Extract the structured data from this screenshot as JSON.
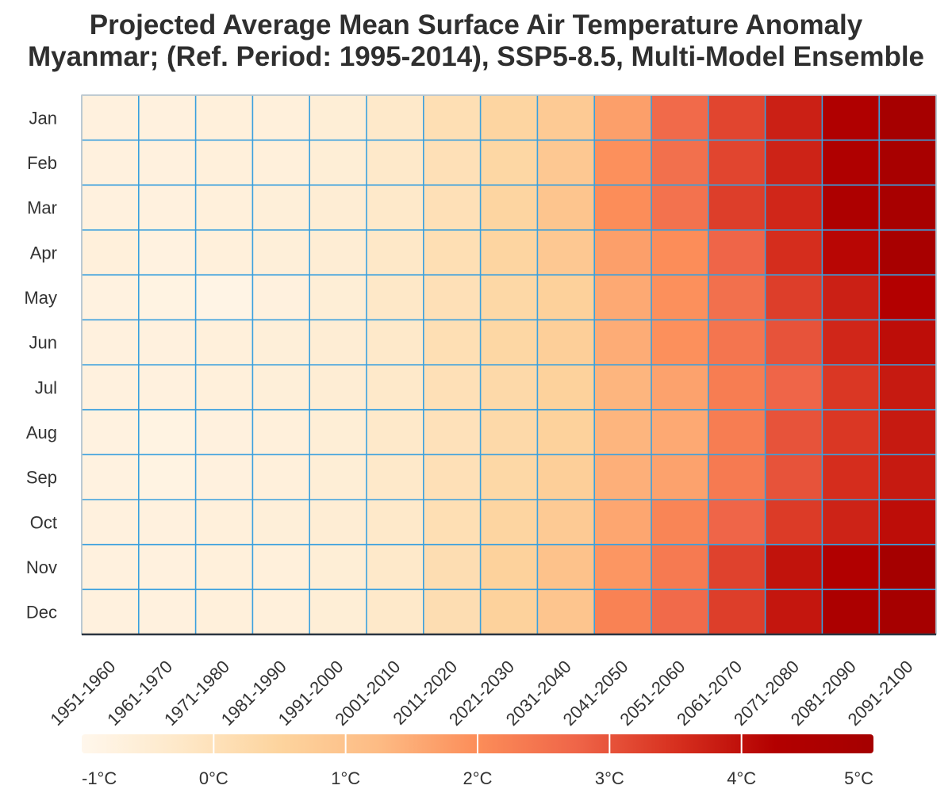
{
  "chart_data": {
    "type": "heatmap",
    "title": "Projected Average Mean Surface Air Temperature Anomaly",
    "subtitle": "Myanmar; (Ref. Period: 1995-2014), SSP5-8.5, Multi-Model Ensemble",
    "rows": [
      "Jan",
      "Feb",
      "Mar",
      "Apr",
      "May",
      "Jun",
      "Jul",
      "Aug",
      "Sep",
      "Oct",
      "Nov",
      "Dec"
    ],
    "columns": [
      "1951-1960",
      "1961-1970",
      "1971-1980",
      "1981-1990",
      "1991-2000",
      "2001-2010",
      "2011-2020",
      "2021-2030",
      "2031-2040",
      "2041-2050",
      "2051-2060",
      "2061-2070",
      "2071-2080",
      "2081-2090",
      "2091-2100"
    ],
    "values": [
      [
        -0.7,
        -0.7,
        -0.65,
        -0.65,
        -0.55,
        -0.3,
        0.1,
        0.45,
        0.8,
        1.7,
        2.65,
        3.2,
        3.75,
        4.4,
        4.95
      ],
      [
        -0.7,
        -0.7,
        -0.65,
        -0.65,
        -0.55,
        -0.3,
        0.05,
        0.4,
        0.85,
        1.95,
        2.55,
        3.2,
        3.7,
        4.45,
        4.85
      ],
      [
        -0.7,
        -0.7,
        -0.65,
        -0.6,
        -0.5,
        -0.3,
        0.05,
        0.45,
        0.95,
        2.0,
        2.5,
        3.3,
        3.65,
        4.55,
        4.85
      ],
      [
        -0.65,
        -0.75,
        -0.65,
        -0.6,
        -0.5,
        -0.25,
        0.1,
        0.45,
        0.85,
        1.7,
        2.0,
        2.75,
        3.55,
        4.15,
        4.85
      ],
      [
        -0.75,
        -0.8,
        -0.85,
        -0.7,
        -0.55,
        -0.25,
        0.05,
        0.35,
        0.6,
        1.55,
        1.95,
        2.55,
        3.3,
        3.75,
        4.25
      ],
      [
        -0.7,
        -0.7,
        -0.65,
        -0.6,
        -0.5,
        -0.3,
        0.1,
        0.4,
        0.65,
        1.5,
        1.95,
        2.45,
        3.0,
        3.65,
        4.05
      ],
      [
        -0.7,
        -0.7,
        -0.65,
        -0.6,
        -0.5,
        -0.3,
        0.05,
        0.3,
        0.55,
        1.35,
        1.65,
        2.3,
        2.75,
        3.4,
        3.85
      ],
      [
        -0.75,
        -0.8,
        -0.7,
        -0.65,
        -0.55,
        -0.3,
        0.0,
        0.3,
        0.55,
        1.35,
        1.55,
        2.3,
        3.0,
        3.4,
        3.85
      ],
      [
        -0.75,
        -0.8,
        -0.7,
        -0.65,
        -0.55,
        -0.3,
        0.05,
        0.35,
        0.65,
        1.45,
        1.65,
        2.35,
        3.0,
        3.55,
        3.85
      ],
      [
        -0.7,
        -0.7,
        -0.65,
        -0.6,
        -0.5,
        -0.3,
        0.1,
        0.45,
        0.8,
        1.6,
        2.15,
        2.75,
        3.35,
        3.7,
        4.05
      ],
      [
        -0.7,
        -0.7,
        -0.65,
        -0.65,
        -0.55,
        -0.3,
        0.15,
        0.55,
        1.05,
        1.85,
        2.35,
        3.25,
        3.95,
        4.35,
        5.05
      ],
      [
        -0.7,
        -0.7,
        -0.65,
        -0.65,
        -0.55,
        -0.3,
        0.15,
        0.55,
        0.95,
        2.2,
        2.65,
        3.3,
        3.9,
        4.6,
        4.95
      ]
    ],
    "colorbar": {
      "min": -1,
      "max": 5,
      "ticks": [
        -1,
        0,
        1,
        2,
        3,
        4,
        5
      ],
      "tick_labels": [
        "-1°C",
        "0°C",
        "1°C",
        "2°C",
        "3°C",
        "4°C",
        "5°C"
      ],
      "colors": [
        "#fff7ec",
        "#fee8c8",
        "#fdd49e",
        "#fdbb84",
        "#fc8d59",
        "#ef6548",
        "#d7301f",
        "#b30000",
        "#a50000"
      ]
    },
    "grid": true,
    "grid_color": "#3aa0de"
  }
}
